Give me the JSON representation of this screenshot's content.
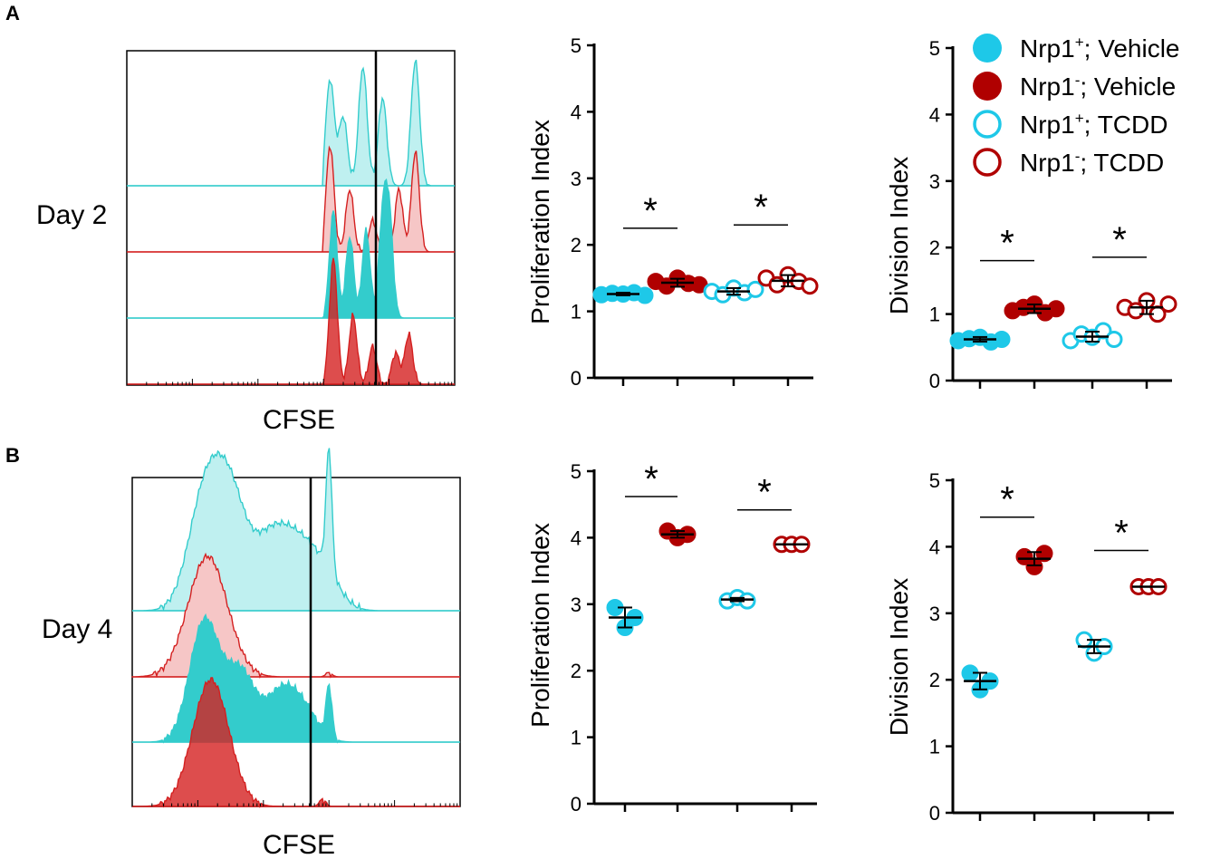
{
  "chart_data": [
    {
      "panel": "A",
      "type": "histogram",
      "label": "Day 2",
      "xlabel": "CFSE",
      "series": [
        {
          "name": "Nrp1+; TCDD",
          "peaks": [
            [
              0.62,
              0.85
            ],
            [
              0.66,
              0.55
            ],
            [
              0.72,
              0.95
            ],
            [
              0.78,
              0.7
            ],
            [
              0.88,
              1.0
            ]
          ],
          "style": "open"
        },
        {
          "name": "Nrp1-; TCDD",
          "peaks": [
            [
              0.62,
              0.85
            ],
            [
              0.68,
              0.5
            ],
            [
              0.75,
              0.25
            ],
            [
              0.83,
              0.5
            ],
            [
              0.88,
              0.8
            ]
          ],
          "style": "open"
        },
        {
          "name": "Nrp1+; Vehicle",
          "peaks": [
            [
              0.63,
              0.85
            ],
            [
              0.68,
              0.65
            ],
            [
              0.73,
              0.7
            ],
            [
              0.78,
              0.75
            ],
            [
              0.8,
              0.8
            ]
          ],
          "style": "filled"
        },
        {
          "name": "Nrp1-; Vehicle",
          "peaks": [
            [
              0.63,
              1.0
            ],
            [
              0.69,
              0.55
            ],
            [
              0.75,
              0.3
            ],
            [
              0.82,
              0.25
            ],
            [
              0.86,
              0.4
            ]
          ],
          "style": "filled"
        }
      ]
    },
    {
      "panel": "A",
      "type": "scatter",
      "ylabel": "Proliferation Index",
      "ylim": [
        0,
        5
      ],
      "yticks": [
        "0",
        "1",
        "2",
        "3",
        "4",
        "5"
      ],
      "groups": [
        {
          "name": "Nrp1+; Vehicle",
          "values": [
            1.25,
            1.27,
            1.26,
            1.28,
            1.24
          ],
          "mean": 1.26
        },
        {
          "name": "Nrp1-; Vehicle",
          "values": [
            1.45,
            1.38,
            1.5,
            1.42,
            1.4
          ],
          "mean": 1.43
        },
        {
          "name": "Nrp1+; TCDD",
          "values": [
            1.3,
            1.25,
            1.35,
            1.28,
            1.33
          ],
          "mean": 1.3
        },
        {
          "name": "Nrp1-; TCDD",
          "values": [
            1.5,
            1.4,
            1.55,
            1.45,
            1.38
          ],
          "mean": 1.46
        }
      ],
      "significance": [
        {
          "pair": [
            0,
            1
          ],
          "label": "*"
        },
        {
          "pair": [
            2,
            3
          ],
          "label": "*"
        }
      ]
    },
    {
      "panel": "A",
      "type": "scatter",
      "ylabel": "Division Index",
      "ylim": [
        0,
        5
      ],
      "yticks": [
        "0",
        "1",
        "2",
        "3",
        "4",
        "5"
      ],
      "groups": [
        {
          "name": "Nrp1+; Vehicle",
          "values": [
            0.6,
            0.63,
            0.65,
            0.58,
            0.62
          ],
          "mean": 0.62
        },
        {
          "name": "Nrp1-; Vehicle",
          "values": [
            1.05,
            1.1,
            1.15,
            1.02,
            1.08
          ],
          "mean": 1.08
        },
        {
          "name": "Nrp1+; TCDD",
          "values": [
            0.6,
            0.7,
            0.65,
            0.75,
            0.62
          ],
          "mean": 0.66
        },
        {
          "name": "Nrp1-; TCDD",
          "values": [
            1.1,
            1.05,
            1.2,
            1.0,
            1.15
          ],
          "mean": 1.1
        }
      ],
      "significance": [
        {
          "pair": [
            0,
            1
          ],
          "label": "*"
        },
        {
          "pair": [
            2,
            3
          ],
          "label": "*"
        }
      ]
    },
    {
      "panel": "B",
      "type": "histogram",
      "label": "Day 4",
      "xlabel": "CFSE",
      "series": [
        {
          "name": "Nrp1+; TCDD",
          "style": "open"
        },
        {
          "name": "Nrp1-; TCDD",
          "style": "open"
        },
        {
          "name": "Nrp1+; Vehicle",
          "style": "filled"
        },
        {
          "name": "Nrp1-; Vehicle",
          "style": "filled"
        }
      ]
    },
    {
      "panel": "B",
      "type": "scatter",
      "ylabel": "Proliferation Index",
      "ylim": [
        0,
        5
      ],
      "yticks": [
        "0",
        "1",
        "2",
        "3",
        "4",
        "5"
      ],
      "groups": [
        {
          "name": "Nrp1+; Vehicle",
          "values": [
            2.95,
            2.65,
            2.8
          ],
          "mean": 2.8
        },
        {
          "name": "Nrp1-; Vehicle",
          "values": [
            4.1,
            4.0,
            4.05
          ],
          "mean": 4.05
        },
        {
          "name": "Nrp1+; TCDD",
          "values": [
            3.05,
            3.1,
            3.05
          ],
          "mean": 3.07
        },
        {
          "name": "Nrp1-; TCDD",
          "values": [
            3.9,
            3.9,
            3.9
          ],
          "mean": 3.9
        }
      ],
      "significance": [
        {
          "pair": [
            0,
            1
          ],
          "label": "*"
        },
        {
          "pair": [
            2,
            3
          ],
          "label": "*"
        }
      ]
    },
    {
      "panel": "B",
      "type": "scatter",
      "ylabel": "Division Index",
      "ylim": [
        0,
        5
      ],
      "yticks": [
        "0",
        "1",
        "2",
        "3",
        "4",
        "5"
      ],
      "groups": [
        {
          "name": "Nrp1+; Vehicle",
          "values": [
            2.1,
            1.85,
            1.98
          ],
          "mean": 1.98
        },
        {
          "name": "Nrp1-; Vehicle",
          "values": [
            3.85,
            3.7,
            3.9
          ],
          "mean": 3.82
        },
        {
          "name": "Nrp1+; TCDD",
          "values": [
            2.6,
            2.4,
            2.5
          ],
          "mean": 2.5
        },
        {
          "name": "Nrp1-; TCDD",
          "values": [
            3.4,
            3.4,
            3.4
          ],
          "mean": 3.4
        }
      ],
      "significance": [
        {
          "pair": [
            0,
            1
          ],
          "label": "*"
        },
        {
          "pair": [
            2,
            3
          ],
          "label": "*"
        }
      ]
    }
  ],
  "legend": {
    "items": [
      {
        "base": "Nrp1",
        "sup": "+",
        "rest": "; Vehicle",
        "color": "#1ec8e8",
        "filled": true
      },
      {
        "base": "Nrp1",
        "sup": "-",
        "rest": "; Vehicle",
        "color": "#b00000",
        "filled": true
      },
      {
        "base": "Nrp1",
        "sup": "+",
        "rest": "; TCDD",
        "color": "#1ec8e8",
        "filled": false
      },
      {
        "base": "Nrp1",
        "sup": "-",
        "rest": "; TCDD",
        "color": "#b00000",
        "filled": false
      }
    ]
  },
  "panel_labels": {
    "a": "A",
    "b": "B"
  },
  "colors": {
    "cyan": "#1ec8e8",
    "red": "#b00000",
    "hist_cyan": "#33cccc",
    "hist_red": "#d42020"
  }
}
